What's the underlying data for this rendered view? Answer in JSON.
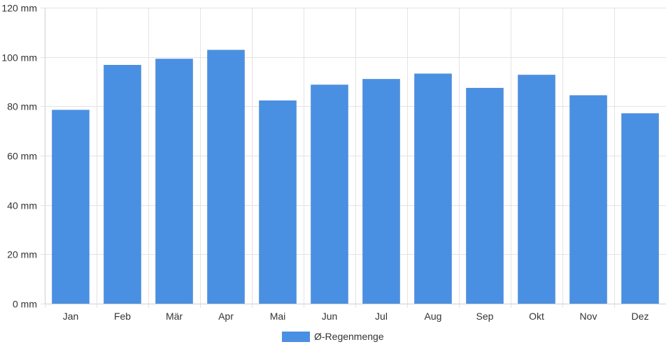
{
  "chart_data": {
    "type": "bar",
    "categories": [
      "Jan",
      "Feb",
      "Mär",
      "Apr",
      "Mai",
      "Jun",
      "Jul",
      "Aug",
      "Sep",
      "Okt",
      "Nov",
      "Dez"
    ],
    "series": [
      {
        "name": "Ø-Regenmenge",
        "values": [
          78.5,
          96.7,
          99.2,
          102.8,
          82.3,
          88.7,
          91.0,
          93.2,
          87.4,
          92.7,
          84.4,
          77.1
        ],
        "color": "#4a90e2"
      }
    ],
    "y_unit": "mm",
    "ylim": [
      0,
      120
    ],
    "yticks": [
      0,
      20,
      40,
      60,
      80,
      100,
      120
    ],
    "grid": true,
    "legend_position": "bottom",
    "title": "",
    "xlabel": "",
    "ylabel": ""
  }
}
